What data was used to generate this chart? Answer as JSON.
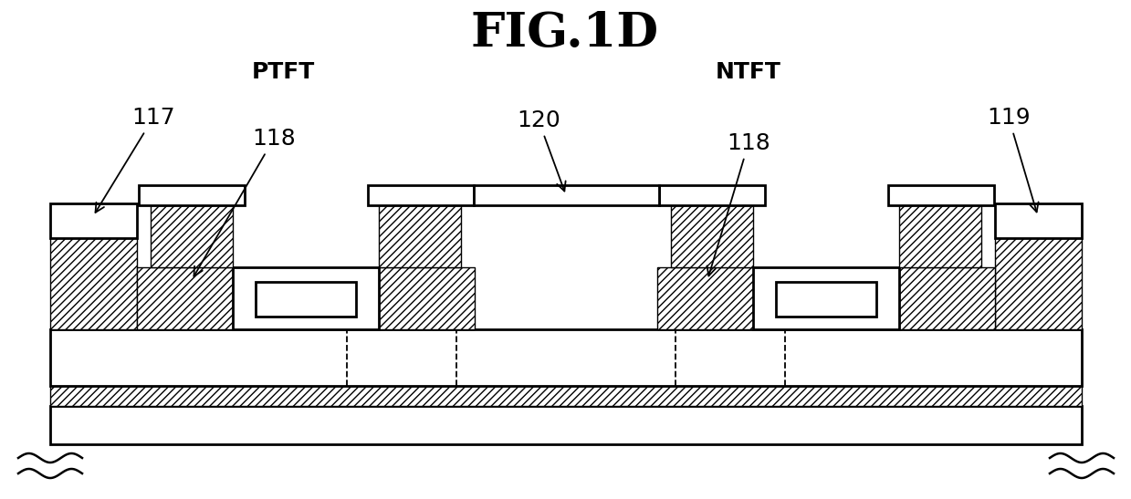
{
  "title": "FIG.1D",
  "bg_color": "#ffffff",
  "labels": {
    "title": "FIG.1D",
    "ptft": "PTFT",
    "ntft": "NTFT",
    "117": "117",
    "118_left": "118",
    "118_right": "118",
    "119": "119",
    "120": "120"
  },
  "title_fontsize": 38,
  "label_fontsize": 18
}
